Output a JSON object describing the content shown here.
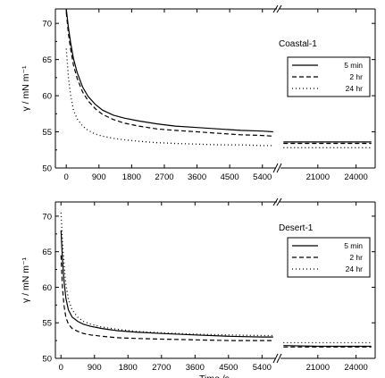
{
  "chart_data": [
    {
      "type": "line",
      "panel_label": "Coastal-1",
      "ylabel": "γ / mN m⁻¹",
      "xlabel": "",
      "ylim": [
        50,
        72
      ],
      "yticks": [
        50,
        55,
        60,
        65,
        70
      ],
      "segments": [
        {
          "xlim": [
            -300,
            5800
          ],
          "xticks": [
            0,
            900,
            1800,
            2700,
            3600,
            4500,
            5400
          ]
        },
        {
          "xlim": [
            18000,
            25500
          ],
          "xticks": [
            21000,
            24000
          ]
        }
      ],
      "axis_break": true,
      "legend": {
        "placement": "right",
        "entries": [
          "5 min",
          "2 hr",
          "24 hr"
        ]
      },
      "series": [
        {
          "name": "5 min",
          "style": "solid",
          "x": [
            0,
            60,
            120,
            200,
            300,
            450,
            600,
            800,
            1000,
            1300,
            1600,
            2000,
            2500,
            3000,
            3600,
            4200,
            4800,
            5400,
            5700,
            18300,
            21000,
            24000,
            25200
          ],
          "y": [
            72.0,
            69.4,
            67.3,
            65.1,
            63.2,
            61.2,
            59.9,
            58.8,
            58.0,
            57.3,
            56.9,
            56.5,
            56.1,
            55.8,
            55.6,
            55.4,
            55.2,
            55.1,
            55.0,
            53.6,
            53.6,
            53.6,
            53.6
          ]
        },
        {
          "name": "2 hr",
          "style": "dashed",
          "x": [
            0,
            60,
            120,
            200,
            300,
            450,
            600,
            800,
            1000,
            1300,
            1600,
            2000,
            2500,
            3000,
            3600,
            4200,
            4800,
            5400,
            5700,
            18300,
            21000,
            24000,
            25200
          ],
          "y": [
            71.5,
            68.6,
            66.4,
            64.2,
            62.4,
            60.5,
            59.3,
            58.2,
            57.4,
            56.7,
            56.2,
            55.8,
            55.4,
            55.2,
            55.0,
            54.8,
            54.6,
            54.5,
            54.4,
            53.4,
            53.4,
            53.4,
            53.4
          ]
        },
        {
          "name": "24 hr",
          "style": "dotted",
          "x": [
            0,
            60,
            120,
            200,
            300,
            450,
            600,
            800,
            1000,
            1300,
            1600,
            2000,
            2500,
            3000,
            3600,
            4200,
            4800,
            5400,
            5700,
            18300,
            21000,
            24000,
            25200
          ],
          "y": [
            66.5,
            62.5,
            60.0,
            58.0,
            56.8,
            55.8,
            55.2,
            54.7,
            54.4,
            54.1,
            53.9,
            53.7,
            53.5,
            53.4,
            53.3,
            53.2,
            53.2,
            53.1,
            53.1,
            52.8,
            52.8,
            52.8,
            52.8
          ]
        }
      ]
    },
    {
      "type": "line",
      "panel_label": "Desert-1",
      "ylabel": "γ / mN m⁻¹",
      "xlabel": "Time /s",
      "ylim": [
        50,
        72
      ],
      "yticks": [
        50,
        55,
        60,
        65,
        70
      ],
      "segments": [
        {
          "xlim": [
            -150,
            5800
          ],
          "xticks": [
            0,
            900,
            1800,
            2700,
            3600,
            4500,
            5400
          ]
        },
        {
          "xlim": [
            18000,
            25500
          ],
          "xticks": [
            21000,
            24000
          ]
        }
      ],
      "axis_break": true,
      "legend": {
        "placement": "right",
        "entries": [
          "5 min",
          "2 hr",
          "24 hr"
        ]
      },
      "series": [
        {
          "name": "5 min",
          "style": "solid",
          "x": [
            0,
            40,
            80,
            130,
            200,
            300,
            450,
            600,
            800,
            1100,
            1500,
            2000,
            2700,
            3600,
            4500,
            5400,
            5700,
            18300,
            21000,
            24000,
            25200
          ],
          "y": [
            68.0,
            64.0,
            61.0,
            58.5,
            56.8,
            55.8,
            55.2,
            54.8,
            54.5,
            54.2,
            53.9,
            53.7,
            53.5,
            53.3,
            53.1,
            53.0,
            53.0,
            51.8,
            51.7,
            51.7,
            51.7
          ]
        },
        {
          "name": "2 hr",
          "style": "dashed",
          "x": [
            0,
            40,
            80,
            130,
            200,
            300,
            450,
            600,
            800,
            1100,
            1500,
            2000,
            2700,
            3600,
            4500,
            5400,
            5700,
            18300,
            21000,
            24000,
            25200
          ],
          "y": [
            64.5,
            60.0,
            57.5,
            55.8,
            54.8,
            54.2,
            53.8,
            53.5,
            53.3,
            53.1,
            52.9,
            52.8,
            52.7,
            52.6,
            52.5,
            52.5,
            52.5,
            51.6,
            51.6,
            51.6,
            51.6
          ]
        },
        {
          "name": "24 hr",
          "style": "dotted",
          "x": [
            0,
            40,
            80,
            130,
            200,
            300,
            450,
            600,
            800,
            1100,
            1500,
            2000,
            2700,
            3600,
            4500,
            5400,
            5700,
            18300,
            21000,
            24000,
            25200
          ],
          "y": [
            70.5,
            66.5,
            63.5,
            60.5,
            58.3,
            56.8,
            55.8,
            55.2,
            54.8,
            54.4,
            54.1,
            53.8,
            53.6,
            53.4,
            53.3,
            53.2,
            53.2,
            52.2,
            52.2,
            52.2,
            52.2
          ]
        }
      ]
    }
  ]
}
